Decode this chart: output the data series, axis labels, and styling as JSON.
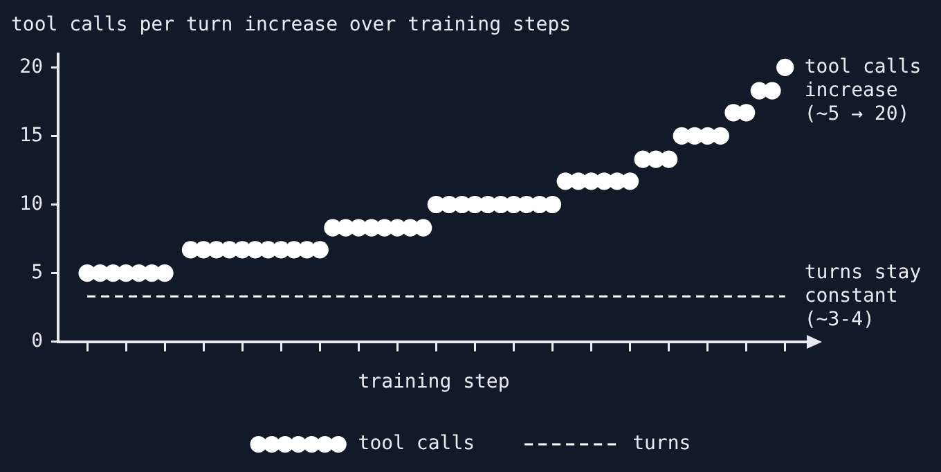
{
  "chart_data": {
    "type": "scatter",
    "title": "tool calls per turn increase over training steps",
    "xlabel": "training step",
    "categories": [
      null,
      null,
      null,
      null,
      null,
      null,
      null,
      null,
      null,
      null,
      null,
      null,
      null,
      null,
      null,
      null,
      null,
      null,
      null,
      null,
      null,
      null,
      null,
      null,
      null,
      null,
      null,
      null,
      null,
      null,
      null,
      null,
      null,
      null,
      null,
      null,
      null,
      null,
      null,
      null,
      null,
      null,
      null,
      null,
      null,
      null,
      null,
      null,
      null,
      null,
      null,
      null,
      null,
      null,
      null
    ],
    "series": [
      {
        "name": "tool calls",
        "color": "#ffffff",
        "marker": "circle",
        "values": [
          5,
          5,
          5,
          5,
          5,
          5,
          5,
          null,
          6.7,
          6.7,
          6.7,
          6.7,
          6.7,
          6.7,
          6.7,
          6.7,
          6.7,
          6.7,
          6.7,
          8.3,
          8.3,
          8.3,
          8.3,
          8.3,
          8.3,
          8.3,
          8.3,
          10,
          10,
          10,
          10,
          10,
          10,
          10,
          10,
          10,
          10,
          11.7,
          11.7,
          11.7,
          11.7,
          11.7,
          11.7,
          13.3,
          13.3,
          13.3,
          15,
          15,
          15,
          15,
          16.7,
          16.7,
          18.3,
          18.3,
          20
        ]
      },
      {
        "name": "turns",
        "type": "line",
        "color": "#ffffff",
        "marker": "none",
        "line_style": "dashed",
        "values": [
          3.3,
          3.3,
          3.3,
          3.3,
          3.3,
          3.3,
          3.3,
          3.3,
          3.3,
          3.3,
          3.3,
          3.3,
          3.3,
          3.3,
          3.3,
          3.3,
          3.3,
          3.3,
          3.3,
          3.3,
          3.3,
          3.3,
          3.3,
          3.3,
          3.3,
          3.3,
          3.3,
          3.3,
          3.3,
          3.3,
          3.3,
          3.3,
          3.3,
          3.3,
          3.3,
          3.3,
          3.3,
          3.3,
          3.3,
          3.3,
          3.3,
          3.3,
          3.3,
          3.3,
          3.3,
          3.3,
          3.3,
          3.3,
          3.3,
          3.3,
          3.3,
          3.3,
          3.3,
          3.3,
          3.3
        ]
      }
    ],
    "annotations": [
      "tool calls\nincrease\n(~5 → 20)",
      "turns stay\nconstant\n(~3-4)"
    ],
    "ylim": [
      0,
      21
    ],
    "yticks": [
      0,
      5,
      10,
      15,
      20
    ],
    "grid": false,
    "legend": "bottom"
  }
}
